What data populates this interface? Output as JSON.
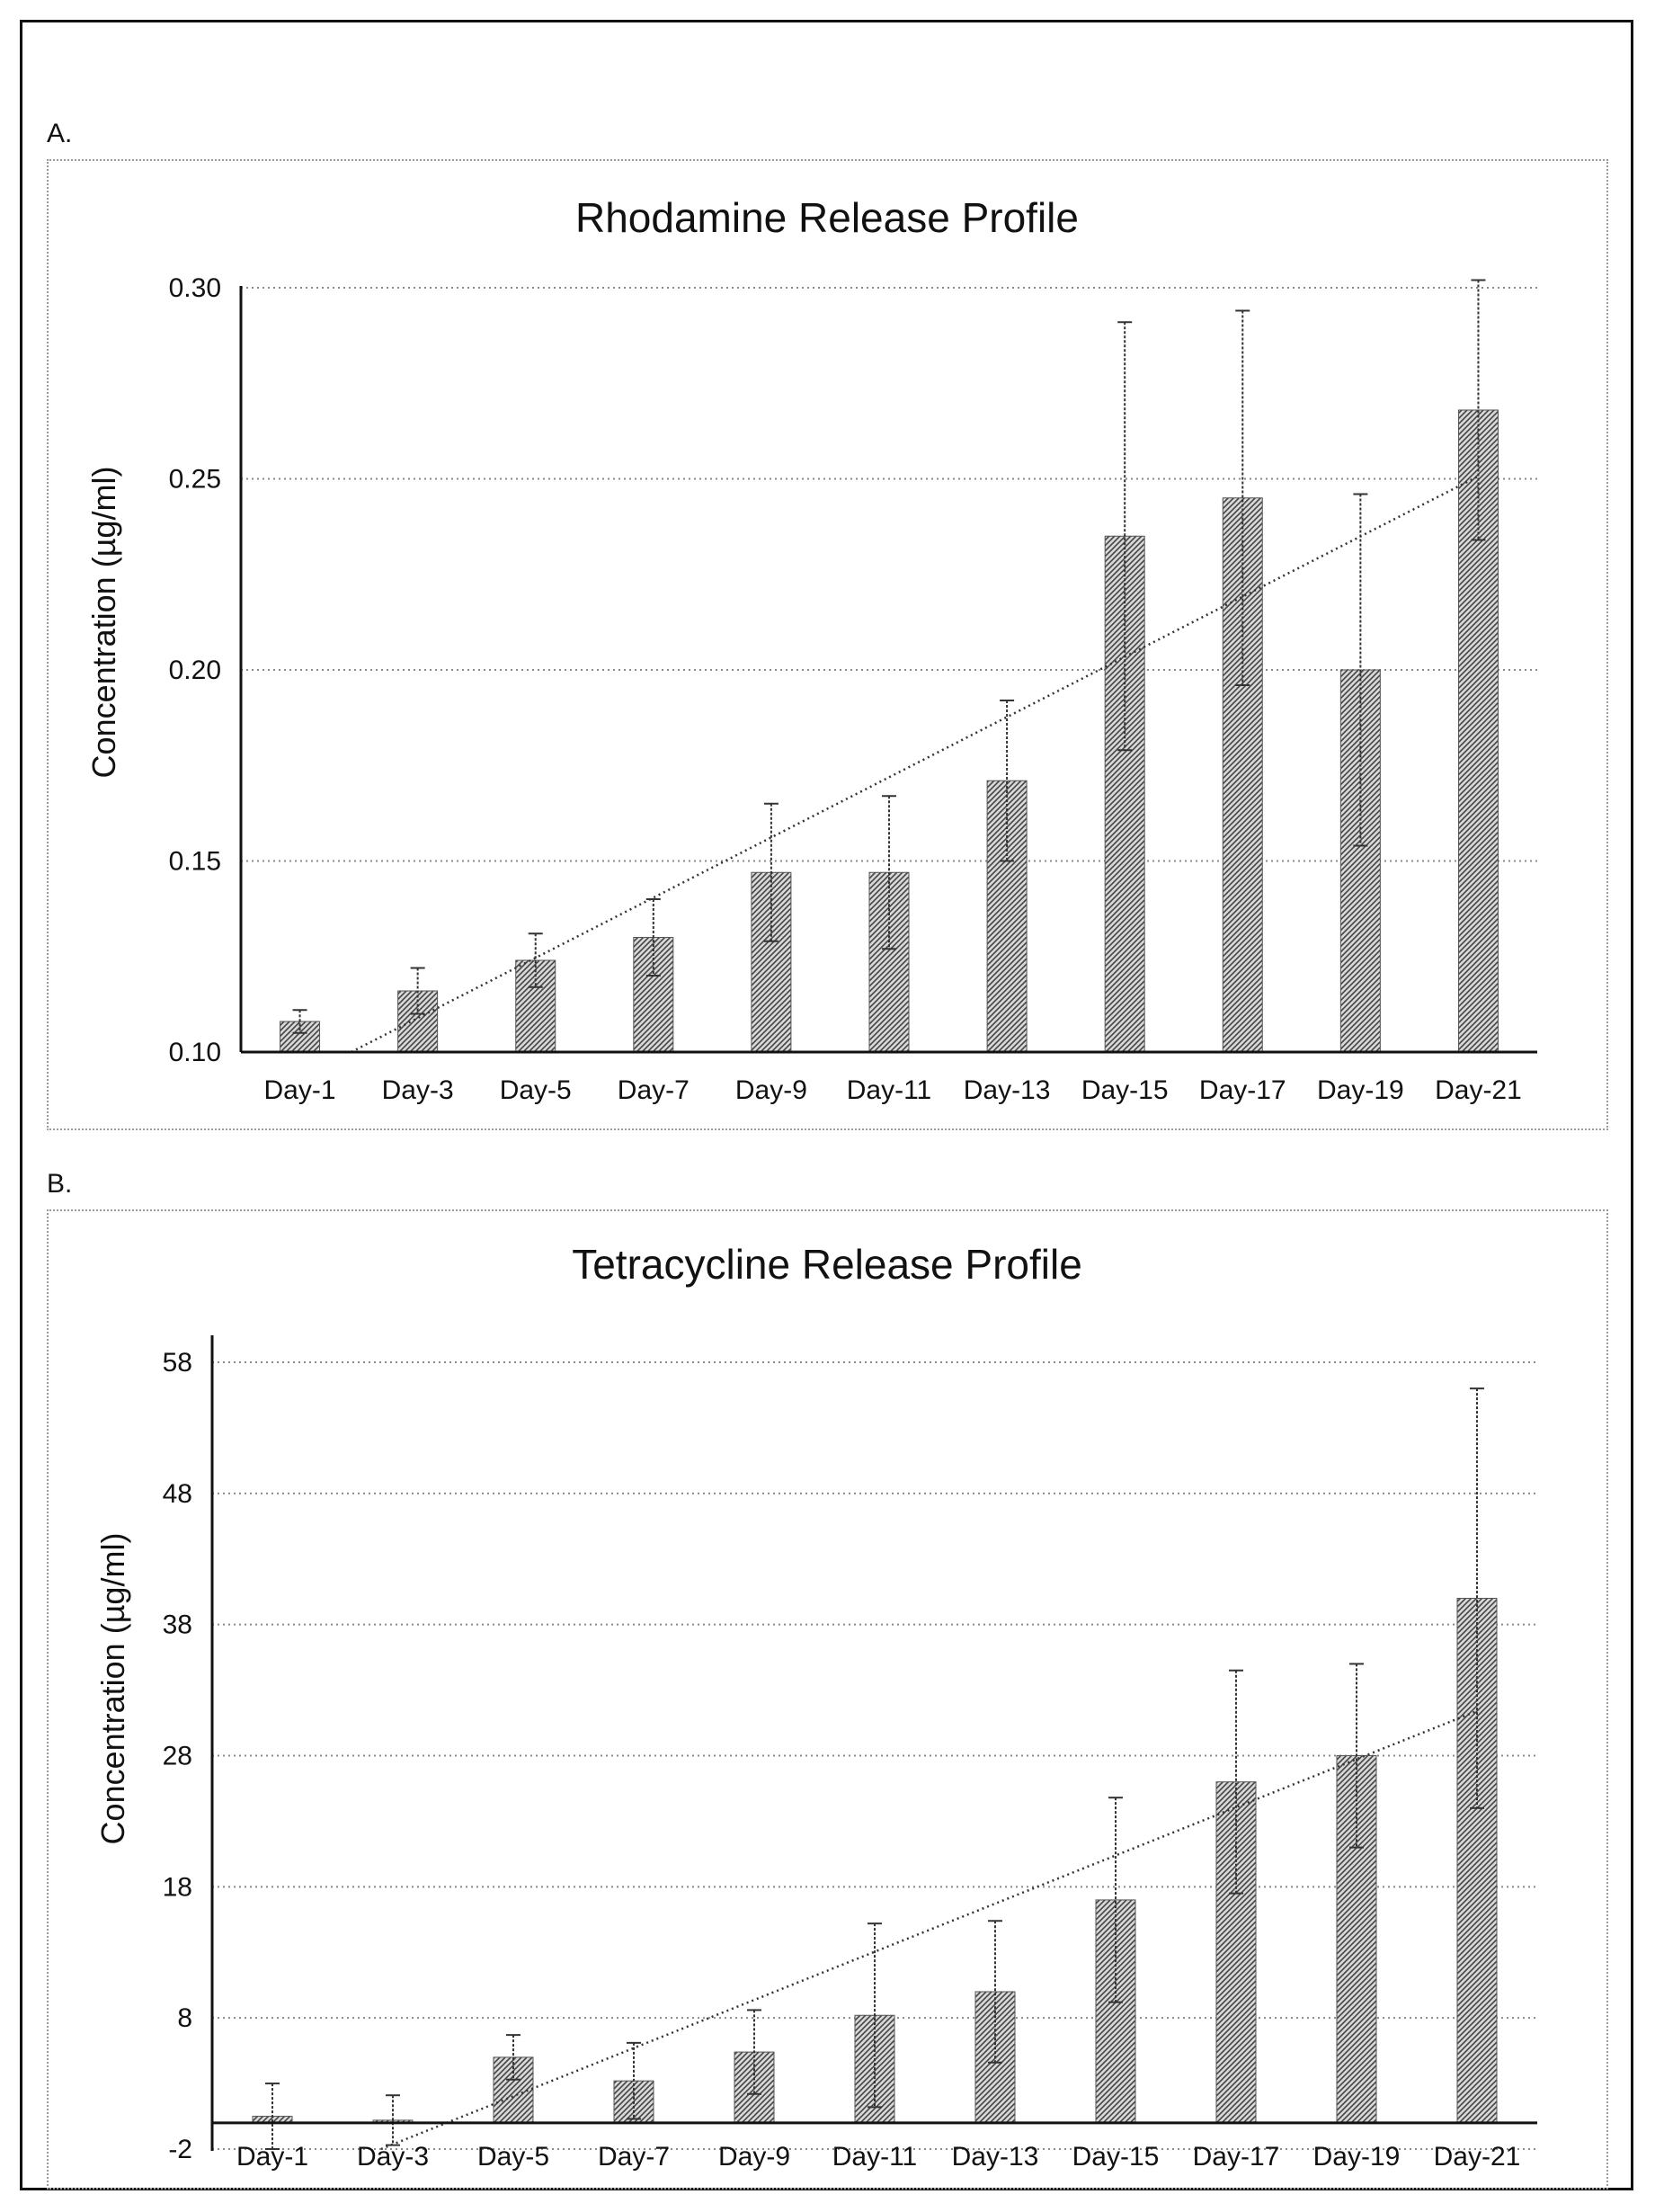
{
  "panels": [
    {
      "letter": "A."
    },
    {
      "letter": "B."
    }
  ],
  "chart_data": [
    {
      "type": "bar",
      "title": "Rhodamine Release Profile",
      "xlabel": "",
      "ylabel": "Concentration (µg/ml)",
      "categories": [
        "Day-1",
        "Day-3",
        "Day-5",
        "Day-7",
        "Day-9",
        "Day-11",
        "Day-13",
        "Day-15",
        "Day-17",
        "Day-19",
        "Day-21"
      ],
      "series": [
        {
          "values": [
            0.108,
            0.116,
            0.124,
            0.13,
            0.147,
            0.147,
            0.171,
            0.235,
            0.245,
            0.2,
            0.268
          ],
          "error": [
            0.003,
            0.006,
            0.007,
            0.01,
            0.018,
            0.02,
            0.021,
            0.056,
            0.049,
            0.046,
            0.034
          ]
        }
      ],
      "trendline": "linear",
      "ylim": [
        0.1,
        0.3
      ],
      "yticks": [
        "0.10",
        "0.15",
        "0.20",
        "0.25",
        "0.30"
      ],
      "ytick_values": [
        0.1,
        0.15,
        0.2,
        0.25,
        0.3
      ],
      "grid": true,
      "legend": "none"
    },
    {
      "type": "bar",
      "title": "Tetracycline Release Profile",
      "xlabel": "",
      "ylabel": "Concentration (µg/ml)",
      "categories": [
        "Day-1",
        "Day-3",
        "Day-5",
        "Day-7",
        "Day-9",
        "Day-11",
        "Day-13",
        "Day-15",
        "Day-17",
        "Day-19",
        "Day-21"
      ],
      "series": [
        {
          "values": [
            0.5,
            0.2,
            5.0,
            3.2,
            5.4,
            8.2,
            10.0,
            17.0,
            26.0,
            28.0,
            40.0
          ],
          "error": [
            2.5,
            1.9,
            1.7,
            2.9,
            3.2,
            7.0,
            5.4,
            7.8,
            8.5,
            7.0,
            16.0
          ]
        }
      ],
      "trendline": "linear",
      "ylim": [
        -2,
        58
      ],
      "yticks": [
        "-2",
        "8",
        "18",
        "28",
        "38",
        "48",
        "58"
      ],
      "ytick_values": [
        -2,
        8,
        18,
        28,
        38,
        48,
        58
      ],
      "baseline": 0,
      "grid": true,
      "legend": "none"
    }
  ]
}
